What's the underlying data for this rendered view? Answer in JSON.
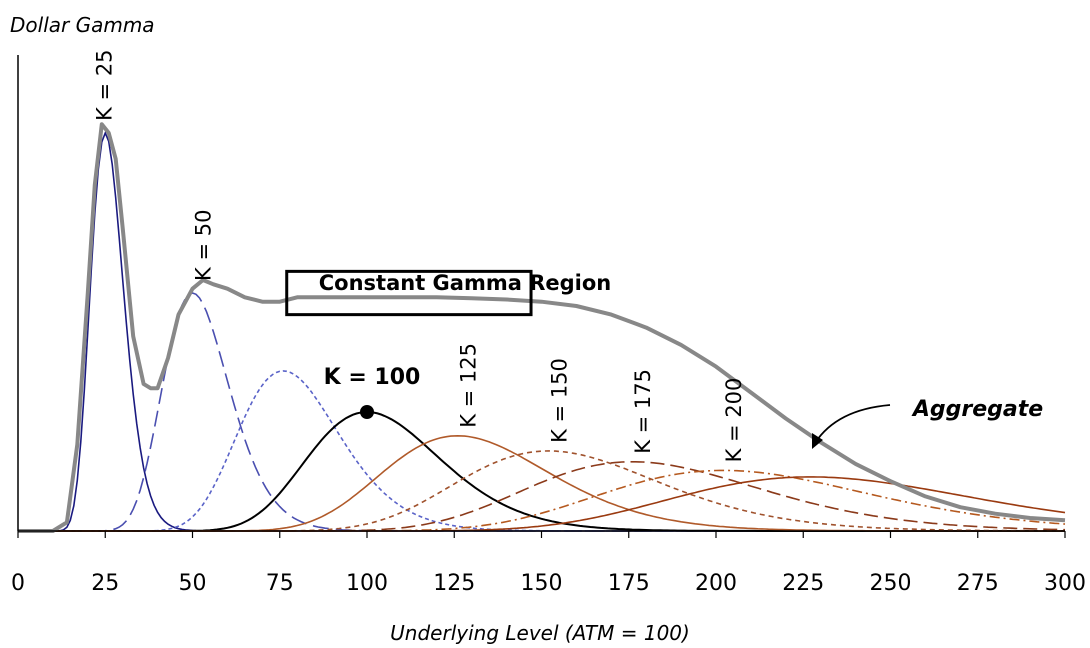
{
  "chart_data": {
    "type": "line",
    "ylabel": "Dollar Gamma",
    "xlabel": "Underlying Level (ATM = 100)",
    "xlim": [
      0,
      300
    ],
    "ylim": [
      0,
      110
    ],
    "x_ticks": [
      "0",
      "25",
      "50",
      "75",
      "100",
      "125",
      "150",
      "175",
      "200",
      "225",
      "250",
      "275",
      "300"
    ],
    "grid": false,
    "annotations": {
      "region_title": "Constant Gamma Region",
      "region_x": [
        77,
        147
      ],
      "region_y": [
        50,
        60
      ],
      "aggregate_label": "Aggregate",
      "highlight_point": {
        "x": 100,
        "y": 27.5
      }
    },
    "series": [
      {
        "name": "K = 25",
        "strike": 25,
        "peak_x": 25,
        "peak_y": 92,
        "width": 0.19,
        "color": "#1a1a80",
        "dash": ""
      },
      {
        "name": "K = 50",
        "strike": 50,
        "peak_x": 50,
        "peak_y": 55,
        "width": 0.19,
        "color": "#4a4fb0",
        "dash": "16,7"
      },
      {
        "name": "",
        "strike": 75,
        "peak_x": 76,
        "peak_y": 37,
        "width": 0.19,
        "color": "#5a63c8",
        "dash": "4,3"
      },
      {
        "name": "K = 100",
        "strike": 100,
        "peak_x": 100,
        "peak_y": 27.5,
        "width": 0.19,
        "color": "#000000",
        "dash": ""
      },
      {
        "name": "K = 125",
        "strike": 125,
        "peak_x": 126,
        "peak_y": 22,
        "width": 0.19,
        "color": "#b05a2a",
        "dash": ""
      },
      {
        "name": "K = 150",
        "strike": 150,
        "peak_x": 152,
        "peak_y": 18.5,
        "width": 0.19,
        "color": "#a0522d",
        "dash": "5,4"
      },
      {
        "name": "K = 175",
        "strike": 175,
        "peak_x": 176,
        "peak_y": 16,
        "width": 0.19,
        "color": "#8b3a1a",
        "dash": "14,6"
      },
      {
        "name": "K = 200",
        "strike": 200,
        "peak_x": 202,
        "peak_y": 14,
        "width": 0.19,
        "color": "#b5591f",
        "dash": "10,4,2,4"
      },
      {
        "name": "",
        "strike": 225,
        "peak_x": 227,
        "peak_y": 12.5,
        "width": 0.19,
        "color": "#9a3a10",
        "dash": ""
      }
    ],
    "aggregate": {
      "name": "Aggregate",
      "color": "#888888",
      "x": [
        0,
        10,
        14,
        17,
        20,
        22,
        24,
        26,
        28,
        30,
        33,
        36,
        38,
        40,
        43,
        46,
        50,
        53,
        56,
        60,
        65,
        70,
        75,
        80,
        90,
        100,
        110,
        120,
        130,
        140,
        150,
        160,
        170,
        180,
        190,
        200,
        210,
        220,
        230,
        240,
        250,
        260,
        270,
        280,
        290,
        300
      ],
      "y": [
        0,
        0,
        2,
        20,
        55,
        80,
        94,
        92,
        86,
        70,
        45,
        34,
        33,
        33,
        40,
        50,
        56,
        58,
        57,
        56,
        54,
        53,
        53,
        54,
        54,
        54,
        54,
        54,
        53.8,
        53.5,
        53,
        52,
        50,
        47,
        43,
        38,
        32,
        26,
        20.5,
        15.5,
        11.5,
        8,
        5.5,
        4,
        3,
        2.5
      ]
    }
  }
}
